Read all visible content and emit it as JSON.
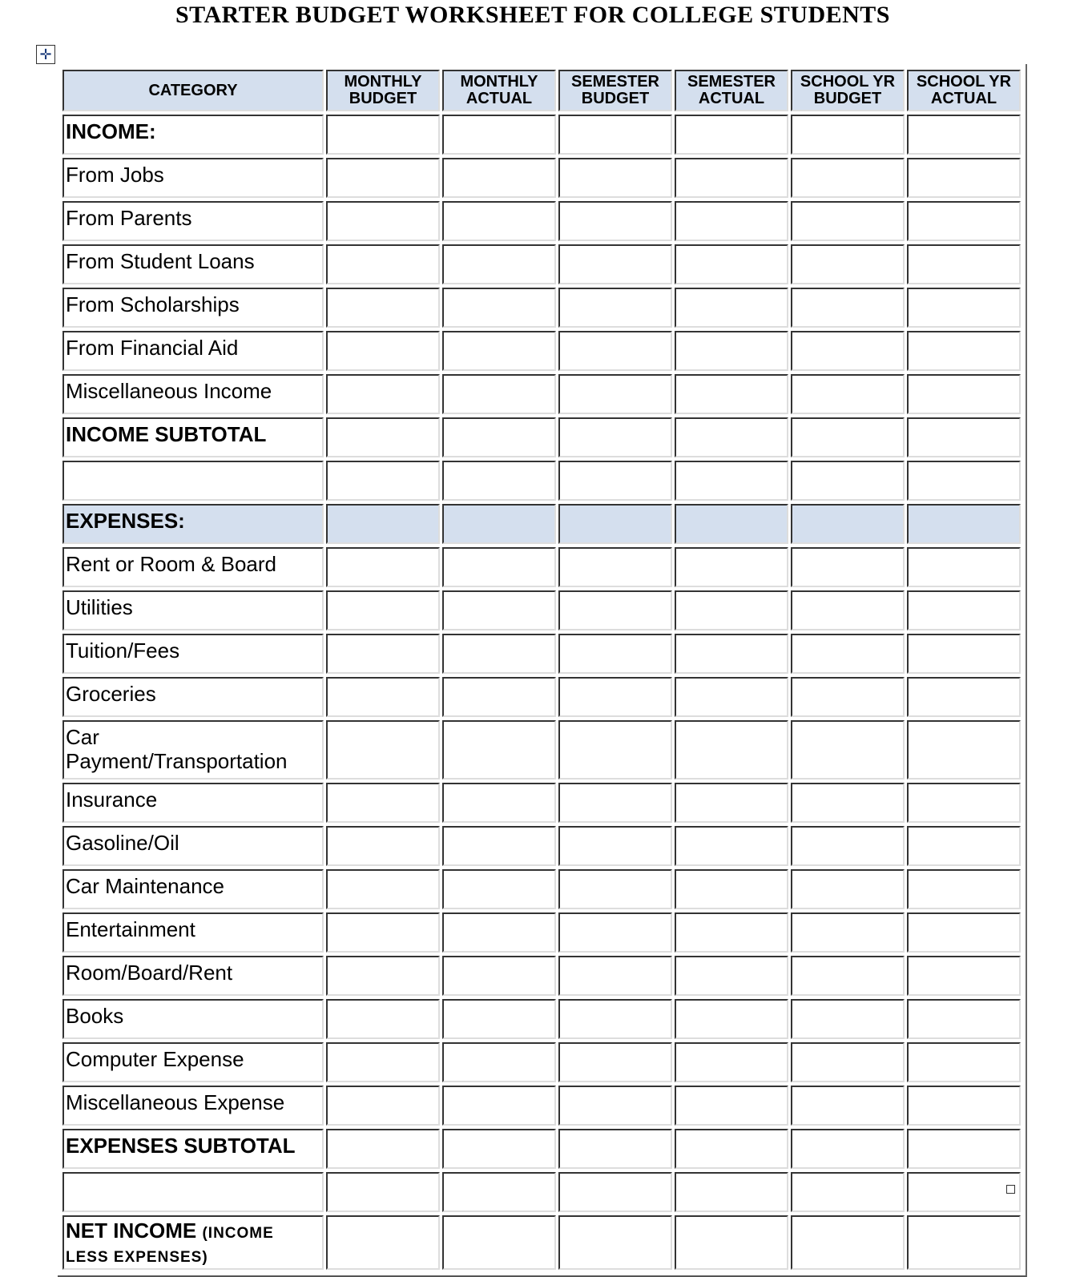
{
  "title": "STARTER BUDGET WORKSHEET FOR COLLEGE STUDENTS",
  "icons": {
    "move_handle": "four-way-arrow-icon",
    "resize_handle": "square-handle-icon"
  },
  "colors": {
    "header_fill": "#d4dfee"
  },
  "columns": [
    "CATEGORY",
    "MONTHLY BUDGET",
    "MONTHLY ACTUAL",
    "SEMESTER BUDGET",
    "SEMESTER ACTUAL",
    "SCHOOL YR BUDGET",
    "SCHOOL YR ACTUAL"
  ],
  "columns_lines": [
    [
      "CATEGORY"
    ],
    [
      "MONTHLY",
      "BUDGET"
    ],
    [
      "MONTHLY",
      "ACTUAL"
    ],
    [
      "SEMESTER",
      "BUDGET"
    ],
    [
      "SEMESTER",
      "ACTUAL"
    ],
    [
      "SCHOOL YR",
      "BUDGET"
    ],
    [
      "SCHOOL YR",
      "ACTUAL"
    ]
  ],
  "rows": [
    {
      "label": "INCOME:",
      "style": "bold"
    },
    {
      "label": "From Jobs"
    },
    {
      "label": "From Parents"
    },
    {
      "label": "From Student Loans"
    },
    {
      "label": "From Scholarships"
    },
    {
      "label": "From Financial Aid"
    },
    {
      "label": "Miscellaneous Income"
    },
    {
      "label": "INCOME  SUBTOTAL",
      "style": "bold"
    },
    {
      "label": ""
    },
    {
      "label": "EXPENSES:",
      "style": "bold shade"
    },
    {
      "label": "Rent  or Room & Board"
    },
    {
      "label": "Utilities"
    },
    {
      "label": "Tuition/Fees"
    },
    {
      "label": "Groceries"
    },
    {
      "label": "Car Payment/Transportation",
      "style": "tall"
    },
    {
      "label": "Insurance"
    },
    {
      "label": "Gasoline/Oil"
    },
    {
      "label": "Car  Maintenance"
    },
    {
      "label": "Entertainment"
    },
    {
      "label": "Room/Board/Rent"
    },
    {
      "label": "Books"
    },
    {
      "label": "Computer Expense"
    },
    {
      "label": "Miscellaneous Expense"
    },
    {
      "label": "EXPENSES SUBTOTAL",
      "style": "bold"
    },
    {
      "label": ""
    }
  ],
  "net_income": {
    "label": "NET INCOME",
    "note": "(INCOME LESS EXPENSES)"
  }
}
